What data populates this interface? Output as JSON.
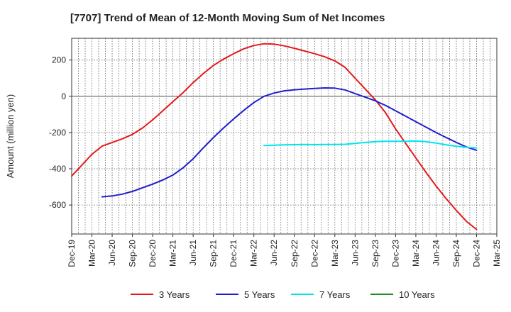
{
  "chart_data": {
    "type": "line",
    "title": "[7707]  Trend of Mean of 12-Month Moving Sum of Net Incomes",
    "ylabel": "Amount (million yen)",
    "xlabel": "",
    "ylim": [
      -760,
      320
    ],
    "yticks": [
      200,
      0,
      -200,
      -400,
      -600
    ],
    "x_tick_labels": [
      "Dec-19",
      "Mar-20",
      "Jun-20",
      "Sep-20",
      "Dec-20",
      "Mar-21",
      "Jun-21",
      "Sep-21",
      "Dec-21",
      "Mar-22",
      "Jun-22",
      "Sep-22",
      "Dec-22",
      "Mar-23",
      "Jun-23",
      "Sep-23",
      "Dec-23",
      "Mar-24",
      "Jun-24",
      "Sep-24",
      "Dec-24",
      "Mar-25"
    ],
    "grid": true,
    "legend_position": "bottom",
    "series": [
      {
        "name": "3 Years",
        "color": "#e41a1c",
        "points": [
          [
            0,
            -440
          ],
          [
            0.5,
            -380
          ],
          [
            1,
            -320
          ],
          [
            1.5,
            -275
          ],
          [
            2,
            -255
          ],
          [
            2.5,
            -235
          ],
          [
            3,
            -210
          ],
          [
            3.5,
            -175
          ],
          [
            4,
            -130
          ],
          [
            4.5,
            -80
          ],
          [
            5,
            -30
          ],
          [
            5.5,
            20
          ],
          [
            6,
            75
          ],
          [
            6.5,
            125
          ],
          [
            7,
            170
          ],
          [
            7.5,
            205
          ],
          [
            8,
            235
          ],
          [
            8.5,
            262
          ],
          [
            9,
            280
          ],
          [
            9.5,
            290
          ],
          [
            10,
            288
          ],
          [
            10.5,
            278
          ],
          [
            11,
            265
          ],
          [
            11.5,
            250
          ],
          [
            12,
            235
          ],
          [
            12.5,
            218
          ],
          [
            13,
            195
          ],
          [
            13.5,
            160
          ],
          [
            14,
            100
          ],
          [
            14.5,
            40
          ],
          [
            15,
            -20
          ],
          [
            15.5,
            -90
          ],
          [
            16,
            -180
          ],
          [
            16.5,
            -260
          ],
          [
            17,
            -340
          ],
          [
            17.5,
            -420
          ],
          [
            18,
            -495
          ],
          [
            18.5,
            -565
          ],
          [
            19,
            -630
          ],
          [
            19.5,
            -690
          ],
          [
            20,
            -735
          ]
        ]
      },
      {
        "name": "5 Years",
        "color": "#1f1fcc",
        "points": [
          [
            1.5,
            -555
          ],
          [
            2,
            -550
          ],
          [
            2.5,
            -540
          ],
          [
            3,
            -525
          ],
          [
            3.5,
            -505
          ],
          [
            4,
            -485
          ],
          [
            4.5,
            -462
          ],
          [
            5,
            -435
          ],
          [
            5.5,
            -395
          ],
          [
            6,
            -345
          ],
          [
            6.5,
            -285
          ],
          [
            7,
            -228
          ],
          [
            7.5,
            -175
          ],
          [
            8,
            -125
          ],
          [
            8.5,
            -78
          ],
          [
            9,
            -35
          ],
          [
            9.5,
            0
          ],
          [
            10,
            18
          ],
          [
            10.5,
            30
          ],
          [
            11,
            36
          ],
          [
            11.5,
            40
          ],
          [
            12,
            43
          ],
          [
            12.5,
            46
          ],
          [
            13,
            45
          ],
          [
            13.5,
            35
          ],
          [
            14,
            15
          ],
          [
            14.5,
            -5
          ],
          [
            15,
            -25
          ],
          [
            15.5,
            -50
          ],
          [
            16,
            -80
          ],
          [
            16.5,
            -110
          ],
          [
            17,
            -140
          ],
          [
            17.5,
            -170
          ],
          [
            18,
            -200
          ],
          [
            18.5,
            -228
          ],
          [
            19,
            -255
          ],
          [
            19.5,
            -280
          ],
          [
            20,
            -298
          ]
        ]
      },
      {
        "name": "7 Years",
        "color": "#00e5ee",
        "points": [
          [
            9.5,
            -272
          ],
          [
            10,
            -270
          ],
          [
            10.5,
            -268
          ],
          [
            11,
            -267
          ],
          [
            11.5,
            -266
          ],
          [
            12,
            -267
          ],
          [
            12.5,
            -266
          ],
          [
            13,
            -266
          ],
          [
            13.5,
            -265
          ],
          [
            14,
            -260
          ],
          [
            14.5,
            -255
          ],
          [
            15,
            -250
          ],
          [
            15.5,
            -248
          ],
          [
            16,
            -248
          ],
          [
            16.5,
            -248
          ],
          [
            17,
            -247
          ],
          [
            17.5,
            -250
          ],
          [
            18,
            -258
          ],
          [
            18.5,
            -268
          ],
          [
            19,
            -276
          ],
          [
            19.5,
            -282
          ],
          [
            20,
            -285
          ]
        ]
      },
      {
        "name": "10 Years",
        "color": "#228b22",
        "points": []
      }
    ]
  }
}
